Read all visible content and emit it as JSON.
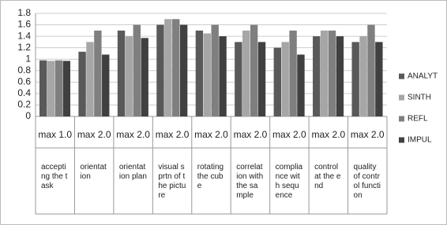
{
  "chart_data": {
    "type": "bar",
    "categories": [
      "accepting the task",
      "orientation",
      "orientation plan",
      "visual sprtn of the picture",
      "rotating the cube",
      "correlation with the sample",
      "compliance with sequence",
      "control at the end",
      "quality of control function"
    ],
    "max_labels": [
      "max 1.0",
      "max 2.0",
      "max 2.0",
      "max 2.0",
      "max 2.0",
      "max 2.0",
      "max 2.0",
      "max 2.0",
      "max 2.0"
    ],
    "series": [
      {
        "name": "ANALYT",
        "color": "#595959",
        "values": [
          0.98,
          1.13,
          1.5,
          1.6,
          1.5,
          1.3,
          1.2,
          1.4,
          1.3
        ]
      },
      {
        "name": "SINTH",
        "color": "#a6a6a6",
        "values": [
          0.97,
          1.3,
          1.4,
          1.7,
          1.45,
          1.5,
          1.3,
          1.5,
          1.4
        ]
      },
      {
        "name": "REFL",
        "color": "#7f7f7f",
        "values": [
          0.98,
          1.5,
          1.6,
          1.7,
          1.6,
          1.6,
          1.5,
          1.5,
          1.6
        ]
      },
      {
        "name": "IMPUL",
        "color": "#404040",
        "values": [
          0.97,
          1.08,
          1.37,
          1.6,
          1.4,
          1.3,
          1.08,
          1.4,
          1.3
        ]
      }
    ],
    "ylim": [
      0,
      1.8
    ],
    "yticks": [
      0,
      0.2,
      0.4,
      0.6,
      0.8,
      1,
      1.2,
      1.4,
      1.6,
      1.8
    ],
    "grid": true,
    "legend": "right"
  }
}
